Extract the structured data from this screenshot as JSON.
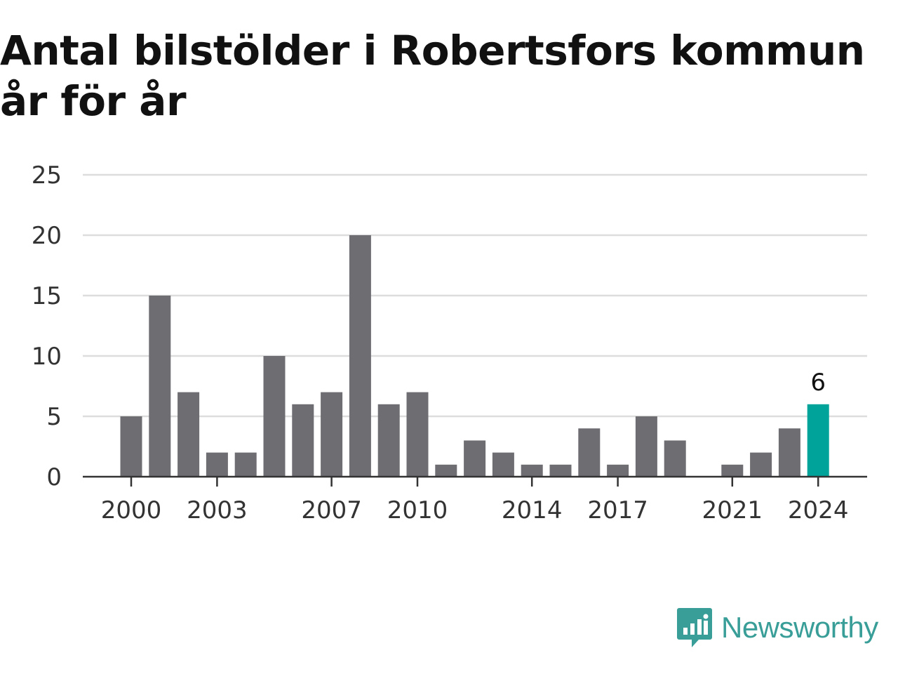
{
  "title": "Antal bilstölder i Robertsfors kommun år för år",
  "brand": {
    "name": "Newsworthy",
    "icon": "newsworthy-logo-icon"
  },
  "colors": {
    "bar": "#6e6d72",
    "highlight": "#00a39a",
    "grid": "#dddddd",
    "axis": "#333333"
  },
  "chart_data": {
    "type": "bar",
    "title": "Antal bilstölder i Robertsfors kommun år för år",
    "xlabel": "",
    "ylabel": "",
    "ylim": [
      0,
      25
    ],
    "yticks": [
      "0",
      "5",
      "10",
      "15",
      "20",
      "25"
    ],
    "grid": true,
    "categories": [
      "2000",
      "2001",
      "2002",
      "2003",
      "2004",
      "2005",
      "2006",
      "2007",
      "2008",
      "2009",
      "2010",
      "2011",
      "2012",
      "2013",
      "2014",
      "2015",
      "2016",
      "2017",
      "2018",
      "2019",
      "2020",
      "2021",
      "2022",
      "2023",
      "2024"
    ],
    "values": [
      5,
      15,
      7,
      2,
      2,
      10,
      6,
      7,
      20,
      6,
      7,
      1,
      3,
      2,
      1,
      1,
      4,
      1,
      5,
      3,
      0,
      1,
      2,
      4,
      6
    ],
    "xtick_labels": [
      "2000",
      "2003",
      "2007",
      "2010",
      "2014",
      "2017",
      "2021",
      "2024"
    ],
    "highlight": {
      "category": "2024",
      "label": "6"
    }
  }
}
